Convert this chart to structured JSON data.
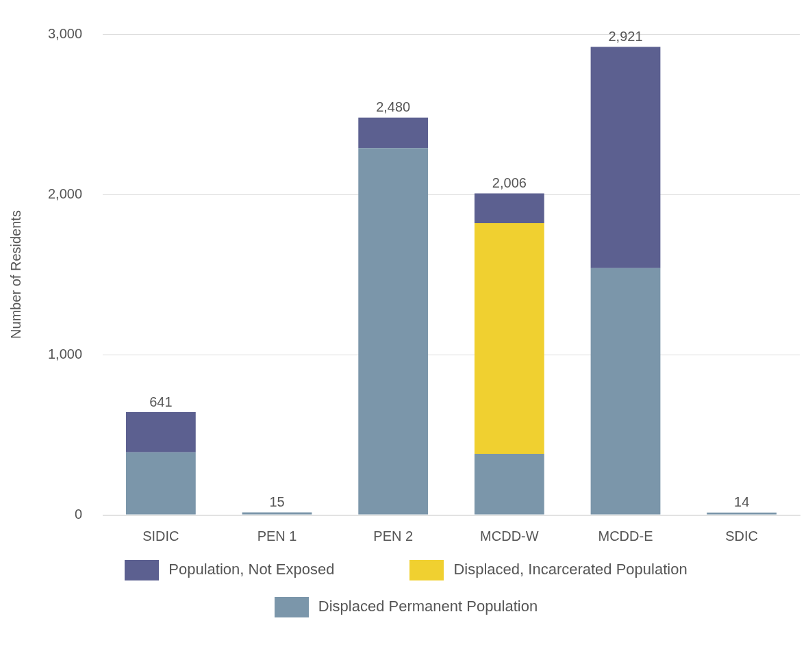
{
  "chart_data": {
    "type": "bar",
    "ylabel": "Number of Residents",
    "categories": [
      "SIDIC",
      "PEN 1",
      "PEN 2",
      "MCDD-W",
      "MCDD-E",
      "SDIC"
    ],
    "stacked": true,
    "ylim": [
      0,
      3000
    ],
    "yticks": [
      0,
      {
        "value": 1000,
        "label": "1,000"
      },
      {
        "value": 2000,
        "label": "2,000"
      },
      {
        "value": 3000,
        "label": "3,000"
      }
    ],
    "grid": "y",
    "legend": "bottom",
    "totals": [
      "641",
      "15",
      "2,480",
      "2,006",
      "2,921",
      "14"
    ],
    "series": [
      {
        "name": "Displaced Permanent Population",
        "color": "#7b96aa",
        "values": [
          390,
          15,
          2290,
          380,
          1540,
          14
        ]
      },
      {
        "name": "Displaced, Incarcerated Population",
        "color": "#f0d030",
        "values": [
          null,
          null,
          null,
          1440,
          null,
          null
        ]
      },
      {
        "name": "Population, Not Exposed",
        "color": "#5c6090",
        "values": [
          251,
          null,
          190,
          186,
          1381,
          null
        ]
      }
    ]
  }
}
